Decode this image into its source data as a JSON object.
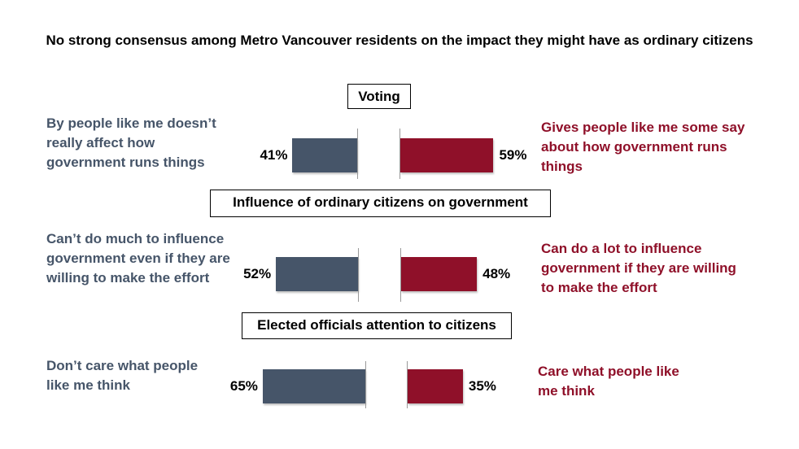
{
  "chart_data": {
    "type": "bar",
    "title": "No strong consensus among Metro Vancouver residents on the impact they might have as ordinary citizens",
    "colors": {
      "left": "#465569",
      "right": "#8f1029"
    },
    "groups": [
      {
        "heading": "Voting",
        "left_label": "By people like me doesn't really affect how government runs things",
        "left_lines": [
          "By people like me doesn’t",
          "really affect how",
          "government runs things"
        ],
        "left_value": 41,
        "left_text": "41%",
        "right_lines": [
          "Gives people like me some say",
          "about how government runs",
          "things"
        ],
        "right_value": 59,
        "right_text": "59%"
      },
      {
        "heading": "Influence of ordinary citizens on government",
        "left_lines": [
          "Can’t do much to influence",
          "government even if they are",
          "willing to make the effort"
        ],
        "left_value": 52,
        "left_text": "52%",
        "right_lines": [
          "Can do a lot to influence",
          "government if they are willing",
          "to make the effort"
        ],
        "right_value": 48,
        "right_text": "48%"
      },
      {
        "heading": "Elected officials attention to citizens",
        "left_lines": [
          "Don’t care what people",
          "like me think"
        ],
        "left_value": 65,
        "left_text": "65%",
        "right_lines": [
          "Care what people like",
          "me think"
        ],
        "right_value": 35,
        "right_text": "35%"
      }
    ]
  }
}
